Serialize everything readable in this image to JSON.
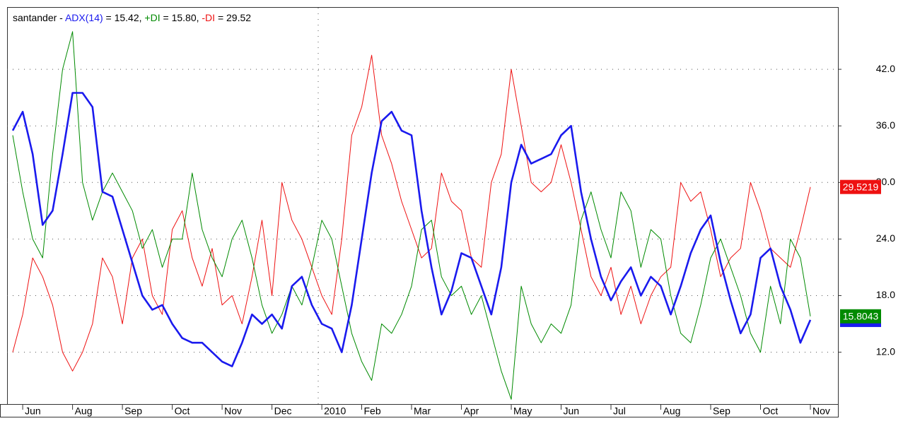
{
  "chart_data": {
    "type": "line",
    "title": "santander -",
    "categories": [
      null,
      "Jun",
      null,
      null,
      null,
      null,
      "Aug",
      null,
      null,
      null,
      null,
      "Sep",
      null,
      null,
      null,
      null,
      "Oct",
      null,
      null,
      null,
      null,
      "Nov",
      null,
      null,
      null,
      null,
      "Dec",
      null,
      null,
      null,
      null,
      "2010",
      null,
      null,
      null,
      "Feb",
      null,
      null,
      null,
      null,
      "Mar",
      null,
      null,
      null,
      null,
      "Apr",
      null,
      null,
      null,
      null,
      "May",
      null,
      null,
      null,
      null,
      "Jun",
      null,
      null,
      null,
      null,
      "Jul",
      null,
      null,
      null,
      null,
      "Aug",
      null,
      null,
      null,
      null,
      "Sep",
      null,
      null,
      null,
      null,
      "Oct",
      null,
      null,
      null,
      null,
      "Nov"
    ],
    "series": [
      {
        "name": "ADX(14)",
        "readout": "= 15.42,",
        "color": "#1a1aee",
        "width": 2.6,
        "last_label": "15.4197",
        "values": [
          35.5,
          37.5,
          33,
          25.5,
          27,
          33,
          39.5,
          39.5,
          38,
          29,
          28.5,
          25,
          21.5,
          18,
          16.5,
          17,
          15,
          13.5,
          13,
          13,
          12,
          11,
          10.5,
          13,
          16,
          15,
          16,
          14.5,
          19,
          20,
          17,
          15,
          14.5,
          12,
          17,
          24,
          31,
          36.5,
          37.5,
          35.5,
          35,
          27,
          21,
          16,
          18.5,
          22.5,
          22,
          19,
          16,
          21,
          30,
          34,
          32,
          32.5,
          33,
          35,
          36,
          29,
          24,
          20,
          17.5,
          19.5,
          21,
          18,
          20,
          19,
          16,
          19,
          22.5,
          25,
          26.5,
          21.5,
          17.5,
          14,
          16,
          22,
          23,
          19,
          16.5,
          13,
          15.4197
        ]
      },
      {
        "name": "+DI",
        "readout": "= 15.80,",
        "color": "#008a00",
        "width": 1,
        "last_label": "15.8043",
        "values": [
          35,
          29,
          24,
          22,
          33,
          42,
          46,
          30,
          26,
          29,
          31,
          29,
          27,
          23,
          25,
          21,
          24,
          24,
          31,
          25,
          22,
          20,
          24,
          26,
          22,
          17,
          14,
          16,
          19,
          17,
          21,
          26,
          24,
          19,
          14,
          11,
          9,
          15,
          14,
          16,
          19,
          25,
          26,
          20,
          18,
          19,
          16,
          18,
          14,
          10,
          7,
          19,
          15,
          13,
          15,
          14,
          17,
          26,
          29,
          25,
          22,
          29,
          27,
          21,
          25,
          24,
          18,
          14,
          13,
          17,
          22,
          24,
          21,
          18,
          14,
          12,
          19,
          15,
          24,
          22,
          15.8043
        ]
      },
      {
        "name": "-DI",
        "readout": "= 29.52",
        "color": "#ee1111",
        "width": 1,
        "last_label": "29.5219",
        "values": [
          12,
          16,
          22,
          20,
          17,
          12,
          10,
          12,
          15,
          22,
          20,
          15,
          22,
          24,
          18,
          16,
          25,
          27,
          22,
          19,
          23,
          17,
          18,
          15,
          20,
          26,
          18,
          30,
          26,
          24,
          21,
          18,
          16,
          24,
          35,
          38,
          43.5,
          35,
          32,
          28,
          25,
          22,
          23,
          31,
          28,
          27,
          22,
          21,
          30,
          33,
          42,
          36,
          30,
          29,
          30,
          34,
          30,
          25,
          20,
          18,
          21,
          16,
          19,
          15,
          18,
          20,
          21,
          30,
          28,
          29,
          25,
          20,
          22,
          23,
          30,
          27,
          23,
          22,
          21,
          25,
          29.5219
        ]
      }
    ],
    "ylim": [
      6.5,
      48.6
    ],
    "yticks": [
      {
        "value": 12,
        "label": "12.0"
      },
      {
        "value": 18,
        "label": "18.0"
      },
      {
        "value": 24,
        "label": "24.0"
      },
      {
        "value": 30,
        "label": "30.0"
      },
      {
        "value": 36,
        "label": "36.0"
      },
      {
        "value": 42,
        "label": "42.0"
      }
    ],
    "grid": true
  }
}
